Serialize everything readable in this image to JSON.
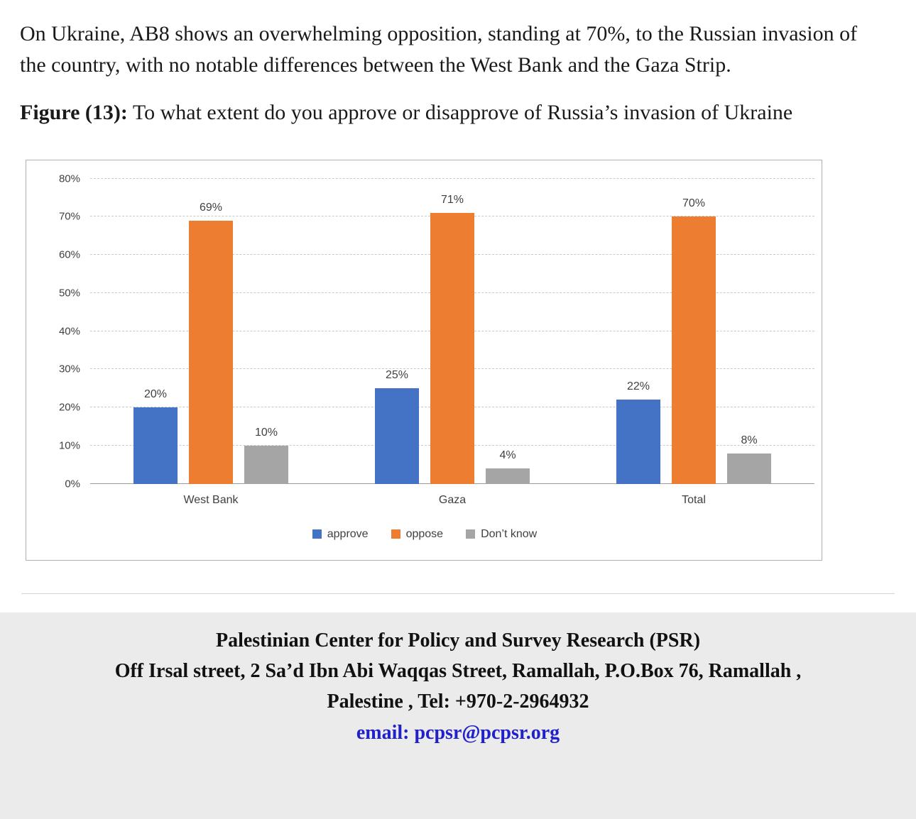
{
  "paragraph": "On Ukraine, AB8 shows an overwhelming opposition, standing at 70%, to the Russian invasion of the country, with no notable differences between the West Bank and the Gaza Strip.",
  "figure": {
    "label": "Figure (13):",
    "caption": " To what extent do you approve or disapprove of Russia’s invasion of Ukraine"
  },
  "chart_data": {
    "type": "bar",
    "title": "Figure (13): To what extent do you approve or disapprove of Russia’s invasion of Ukraine",
    "categories": [
      "West Bank",
      "Gaza",
      "Total"
    ],
    "series": [
      {
        "name": "approve",
        "color": "#4472C4",
        "values": [
          20,
          25,
          22
        ]
      },
      {
        "name": "oppose",
        "color": "#ED7D31",
        "values": [
          69,
          71,
          70
        ]
      },
      {
        "name": "Don’t know",
        "color": "#A5A5A5",
        "values": [
          10,
          4,
          8
        ]
      }
    ],
    "y_ticks": [
      "0%",
      "10%",
      "20%",
      "30%",
      "40%",
      "50%",
      "60%",
      "70%",
      "80%"
    ],
    "ylim": [
      0,
      80
    ],
    "grid": "dashed-horizontal",
    "legend_position": "bottom",
    "data_labels": true,
    "xlabel": "",
    "ylabel": ""
  },
  "footer": {
    "org": "Palestinian Center for Policy and Survey Research (PSR)",
    "address_line": "Off Irsal street, 2 Sa’d Ibn Abi Waqqas Street, Ramallah, P.O.Box 76, Ramallah ,",
    "tel_line": "Palestine ,  Tel: +970-2-2964932",
    "email_label": "email: ",
    "email": "pcpsr@pcpsr.org",
    "email_color": "#2121cc"
  }
}
